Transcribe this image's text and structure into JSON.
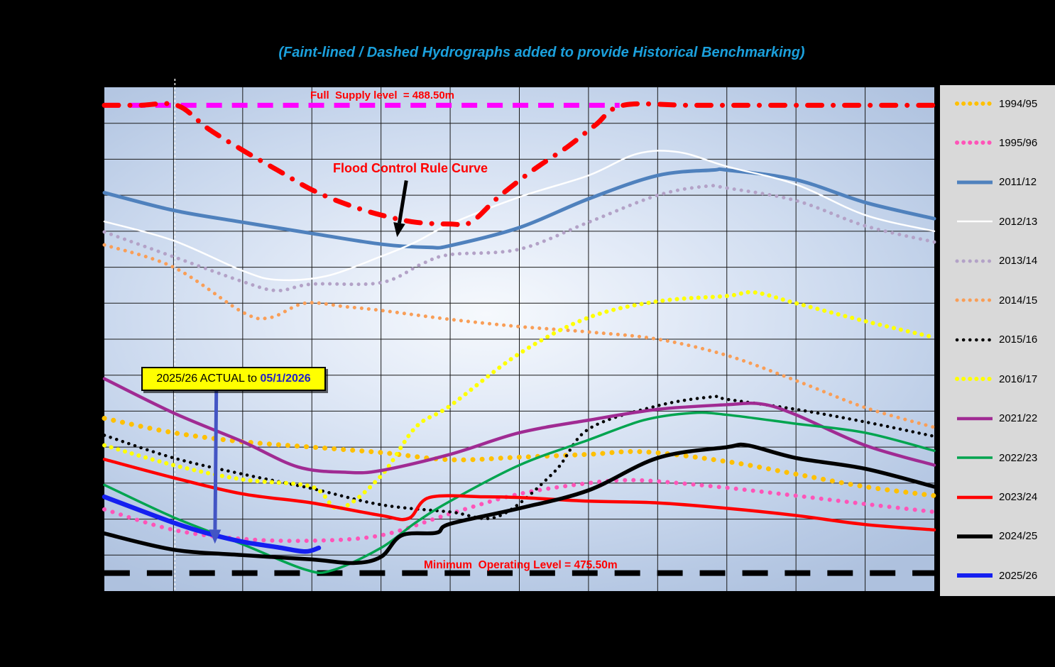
{
  "title": {
    "text": "(Faint-lined / Dashed Hydrographs added to provide Historical Benchmarking)"
  },
  "annotations": {
    "full_supply": "Full  Supply level  = 488.50m",
    "flood_control": "Flood Control Rule Curve",
    "actual_prefix": "2025/26 ACTUAL to ",
    "actual_date": "05/1/2026",
    "min_operating": "Minimum  Operating Level = 475.50m"
  },
  "colors": {
    "page_background": "#000000",
    "plot_fill_light": "#F6F9FD",
    "plot_fill_dark": "#AEC1DE",
    "gridline": "#1A1A1A",
    "legend_background": "#D9D9D9",
    "title_blue": "#1BA0DC",
    "annotation_red": "#FF0000",
    "callout_yellow": "#FFFF00",
    "callout_date_blue": "#1F1FC8",
    "callout_arrow_blue": "#4355C4",
    "flood_arrow_black": "#000000"
  },
  "chart_data": {
    "type": "line",
    "title": "(Faint-lined / Dashed Hydrographs added to provide Historical Benchmarking)",
    "xlabel": "",
    "ylabel": "",
    "x_axis": {
      "months_span": 12,
      "gridline_step": 1,
      "labels_visible": false
    },
    "y_axis": {
      "min": 475,
      "max": 489,
      "unit": "m",
      "gridline_step": 1,
      "labels_visible": false
    },
    "legend_position": "right",
    "marker_month": 1.02,
    "reference_lines": [
      {
        "name": "Full Supply Level",
        "value_m": 488.5,
        "color": "#FF00FF",
        "style": "dash",
        "dash": "22 14",
        "width": 7,
        "layer": "under",
        "points": [
          [
            0,
            488.5
          ],
          [
            3.7,
            488.5
          ],
          [
            7.45,
            488.5
          ]
        ]
      },
      {
        "name": "Minimum Operating Level",
        "value_m": 475.5,
        "color": "#000000",
        "style": "dash",
        "dash": "36 24",
        "width": 8,
        "layer": "under",
        "points": [
          [
            0,
            475.5
          ],
          [
            6,
            475.5
          ],
          [
            12,
            475.5
          ]
        ]
      },
      {
        "name": "Flood Control Rule Curve",
        "value_m": null,
        "color": "#FF0000",
        "style": "dashdot",
        "dash": "20 16 0.1 16",
        "width": 7,
        "layer": "over",
        "points": [
          [
            0,
            488.5
          ],
          [
            0.5,
            488.5
          ],
          [
            1.05,
            488.5
          ],
          [
            1.5,
            487.85
          ],
          [
            2,
            487.25
          ],
          [
            2.5,
            486.7
          ],
          [
            3,
            486.15
          ],
          [
            3.5,
            485.75
          ],
          [
            4,
            485.45
          ],
          [
            4.5,
            485.25
          ],
          [
            5,
            485.2
          ],
          [
            5.3,
            485.25
          ],
          [
            5.7,
            485.95
          ],
          [
            6.2,
            486.7
          ],
          [
            6.7,
            487.35
          ],
          [
            7.1,
            487.95
          ],
          [
            7.5,
            488.5
          ],
          [
            8.5,
            488.5
          ],
          [
            10,
            488.5
          ],
          [
            12,
            488.5
          ]
        ]
      }
    ],
    "series": [
      {
        "name": "1994/95",
        "color": "#FFC000",
        "style": "dots",
        "width": 7,
        "gap": 13,
        "points": [
          [
            0,
            479.8
          ],
          [
            1,
            479.4
          ],
          [
            2,
            479.15
          ],
          [
            3,
            479.0
          ],
          [
            4,
            478.85
          ],
          [
            5,
            478.65
          ],
          [
            6,
            478.72
          ],
          [
            7,
            478.8
          ],
          [
            7.8,
            478.87
          ],
          [
            9,
            478.6
          ],
          [
            10,
            478.25
          ],
          [
            11,
            477.9
          ],
          [
            12,
            477.65
          ]
        ]
      },
      {
        "name": "1995/96",
        "color": "#FF54B8",
        "style": "dots",
        "width": 6,
        "gap": 12,
        "points": [
          [
            0,
            477.27
          ],
          [
            1,
            476.7
          ],
          [
            2,
            476.45
          ],
          [
            3,
            476.4
          ],
          [
            4,
            476.55
          ],
          [
            5,
            477.15
          ],
          [
            6,
            477.7
          ],
          [
            7,
            478.0
          ],
          [
            7.5,
            478.08
          ],
          [
            8,
            478.05
          ],
          [
            9,
            477.87
          ],
          [
            10,
            477.65
          ],
          [
            11,
            477.42
          ],
          [
            12,
            477.2
          ]
        ]
      },
      {
        "name": "2011/12",
        "color": "#4F81BD",
        "style": "solid",
        "width": 5,
        "points": [
          [
            0,
            486.07
          ],
          [
            1,
            485.58
          ],
          [
            2,
            485.25
          ],
          [
            3,
            484.94
          ],
          [
            4,
            484.64
          ],
          [
            4.7,
            484.55
          ],
          [
            5,
            484.6
          ],
          [
            6,
            485.1
          ],
          [
            7,
            485.9
          ],
          [
            8,
            486.55
          ],
          [
            8.8,
            486.7
          ],
          [
            9,
            486.7
          ],
          [
            10,
            486.43
          ],
          [
            11,
            485.8
          ],
          [
            12,
            485.35
          ]
        ]
      },
      {
        "name": "2012/13",
        "color": "#FFFFFF",
        "style": "solid",
        "width": 2.5,
        "points": [
          [
            0,
            485.27
          ],
          [
            1,
            484.74
          ],
          [
            2,
            483.9
          ],
          [
            2.5,
            483.65
          ],
          [
            3.2,
            483.75
          ],
          [
            4,
            484.3
          ],
          [
            4.5,
            484.7
          ],
          [
            5,
            485.2
          ],
          [
            6,
            485.95
          ],
          [
            7,
            486.55
          ],
          [
            7.7,
            487.15
          ],
          [
            8.3,
            487.2
          ],
          [
            9,
            486.8
          ],
          [
            10,
            486.3
          ],
          [
            11,
            485.45
          ],
          [
            12,
            485.0
          ]
        ]
      },
      {
        "name": "2013/14",
        "color": "#B3A2C7",
        "style": "dots",
        "width": 5,
        "gap": 10,
        "points": [
          [
            0,
            484.98
          ],
          [
            1,
            484.29
          ],
          [
            2,
            483.6
          ],
          [
            2.5,
            483.35
          ],
          [
            3,
            483.53
          ],
          [
            4,
            483.57
          ],
          [
            4.6,
            484.1
          ],
          [
            5,
            484.35
          ],
          [
            6,
            484.5
          ],
          [
            7,
            485.25
          ],
          [
            8,
            486.0
          ],
          [
            8.7,
            486.25
          ],
          [
            9,
            486.2
          ],
          [
            10,
            485.85
          ],
          [
            11,
            485.15
          ],
          [
            12,
            484.7
          ]
        ]
      },
      {
        "name": "2014/15",
        "color": "#F99E57",
        "style": "dots",
        "width": 5,
        "gap": 10,
        "points": [
          [
            0,
            484.62
          ],
          [
            1,
            484.0
          ],
          [
            2,
            482.75
          ],
          [
            2.4,
            482.6
          ],
          [
            2.9,
            483.0
          ],
          [
            3.5,
            482.9
          ],
          [
            4,
            482.8
          ],
          [
            5,
            482.55
          ],
          [
            6,
            482.35
          ],
          [
            7,
            482.2
          ],
          [
            8,
            482.0
          ],
          [
            9,
            481.55
          ],
          [
            10,
            480.85
          ],
          [
            11,
            480.1
          ],
          [
            12,
            479.55
          ]
        ]
      },
      {
        "name": "2015/16",
        "color": "#000000",
        "style": "dots",
        "width": 4.5,
        "gap": 9,
        "points": [
          [
            0,
            479.33
          ],
          [
            1,
            478.7
          ],
          [
            2,
            478.25
          ],
          [
            3,
            477.85
          ],
          [
            4,
            477.4
          ],
          [
            5,
            477.2
          ],
          [
            5.7,
            477.08
          ],
          [
            6.5,
            478.3
          ],
          [
            7,
            479.5
          ],
          [
            8,
            480.15
          ],
          [
            8.8,
            480.4
          ],
          [
            9,
            480.33
          ],
          [
            10,
            480.05
          ],
          [
            11,
            479.7
          ],
          [
            12,
            479.3
          ]
        ]
      },
      {
        "name": "2016/17",
        "color": "#FFFF00",
        "style": "dots",
        "width": 6,
        "gap": 10,
        "points": [
          [
            0,
            479.05
          ],
          [
            1,
            478.5
          ],
          [
            2,
            478.1
          ],
          [
            3,
            477.9
          ],
          [
            3.4,
            477.3
          ],
          [
            4,
            478.2
          ],
          [
            4.5,
            479.55
          ],
          [
            5,
            480.15
          ],
          [
            6,
            481.6
          ],
          [
            7,
            482.6
          ],
          [
            8,
            483.05
          ],
          [
            9,
            483.2
          ],
          [
            9.4,
            483.3
          ],
          [
            10,
            483.0
          ],
          [
            11,
            482.5
          ],
          [
            12,
            482.05
          ]
        ]
      },
      {
        "name": "2021/22",
        "color": "#A02B93",
        "style": "solid",
        "width": 4.5,
        "points": [
          [
            0,
            480.9
          ],
          [
            1,
            479.95
          ],
          [
            2,
            479.15
          ],
          [
            2.8,
            478.45
          ],
          [
            3.5,
            478.3
          ],
          [
            4,
            478.35
          ],
          [
            5,
            478.8
          ],
          [
            6,
            479.4
          ],
          [
            7,
            479.75
          ],
          [
            8,
            480.05
          ],
          [
            9,
            480.18
          ],
          [
            9.5,
            480.2
          ],
          [
            10,
            479.9
          ],
          [
            11,
            479.05
          ],
          [
            12,
            478.5
          ]
        ]
      },
      {
        "name": "2022/23",
        "color": "#00A44F",
        "style": "solid",
        "width": 3.5,
        "points": [
          [
            0,
            477.95
          ],
          [
            1,
            477.05
          ],
          [
            2,
            476.3
          ],
          [
            2.9,
            475.6
          ],
          [
            3.3,
            475.58
          ],
          [
            4,
            476.2
          ],
          [
            4.5,
            476.9
          ],
          [
            5,
            477.5
          ],
          [
            6,
            478.5
          ],
          [
            7,
            479.2
          ],
          [
            7.8,
            479.75
          ],
          [
            8.5,
            479.95
          ],
          [
            9,
            479.9
          ],
          [
            10,
            479.65
          ],
          [
            11,
            479.4
          ],
          [
            12,
            478.9
          ]
        ]
      },
      {
        "name": "2023/24",
        "color": "#FF0000",
        "style": "solid",
        "width": 4.5,
        "points": [
          [
            0,
            478.66
          ],
          [
            1,
            478.15
          ],
          [
            2,
            477.7
          ],
          [
            3,
            477.45
          ],
          [
            4,
            477.1
          ],
          [
            4.4,
            477.02
          ],
          [
            4.7,
            477.6
          ],
          [
            5.5,
            477.62
          ],
          [
            6,
            477.6
          ],
          [
            7,
            477.5
          ],
          [
            8,
            477.45
          ],
          [
            9,
            477.3
          ],
          [
            10,
            477.1
          ],
          [
            11,
            476.85
          ],
          [
            12,
            476.7
          ]
        ]
      },
      {
        "name": "2024/25",
        "color": "#000000",
        "style": "solid",
        "width": 5.5,
        "points": [
          [
            0,
            476.6
          ],
          [
            1,
            476.15
          ],
          [
            2,
            476.0
          ],
          [
            3,
            475.88
          ],
          [
            3.6,
            475.78
          ],
          [
            4,
            475.95
          ],
          [
            4.3,
            476.55
          ],
          [
            4.8,
            476.62
          ],
          [
            5,
            476.87
          ],
          [
            6,
            477.3
          ],
          [
            7,
            477.8
          ],
          [
            8,
            478.7
          ],
          [
            9,
            479.0
          ],
          [
            9.3,
            479.05
          ],
          [
            10,
            478.7
          ],
          [
            11,
            478.4
          ],
          [
            12,
            477.9
          ]
        ]
      },
      {
        "name": "2025/26",
        "color": "#1520F0",
        "style": "solid",
        "width": 6.5,
        "points": [
          [
            0,
            477.62
          ],
          [
            1,
            476.9
          ],
          [
            1.5,
            476.6
          ],
          [
            2,
            476.37
          ],
          [
            2.5,
            476.22
          ],
          [
            2.9,
            476.1
          ],
          [
            3.1,
            476.2
          ]
        ]
      }
    ]
  }
}
